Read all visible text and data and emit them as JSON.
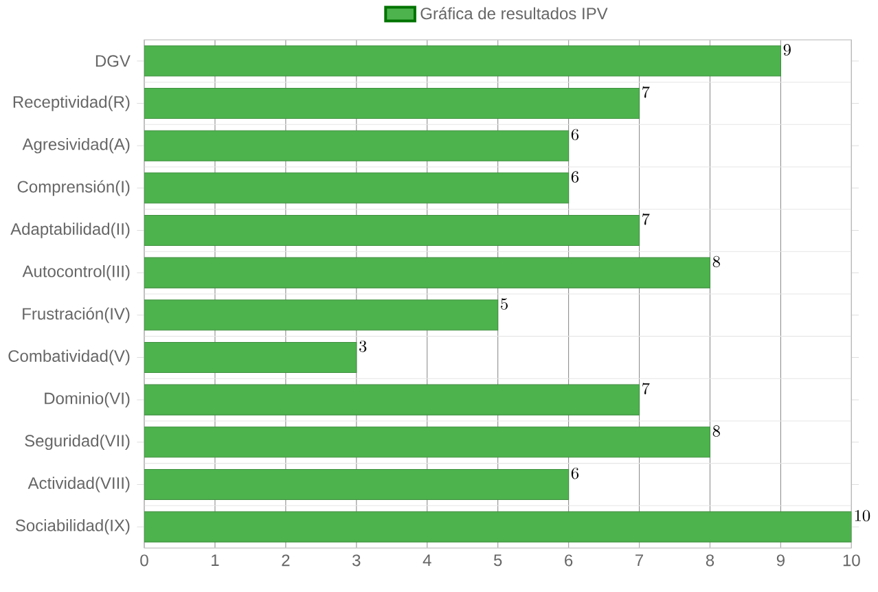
{
  "chart_data": {
    "type": "bar",
    "orientation": "horizontal",
    "categories": [
      "DGV",
      "Receptividad(R)",
      "Agresividad(A)",
      "Comprensión(I)",
      "Adaptabilidad(II)",
      "Autocontrol(III)",
      "Frustración(IV)",
      "Combatividad(V)",
      "Dominio(VI)",
      "Seguridad(VII)",
      "Actividad(VIII)",
      "Sociabilidad(IX)"
    ],
    "series": [
      {
        "name": "Gráfica de resultados IPV",
        "color": "#4db34d",
        "values": [
          9,
          7,
          6,
          6,
          7,
          8,
          5,
          3,
          7,
          8,
          6,
          10
        ]
      }
    ],
    "xlim": [
      0,
      10
    ],
    "xticks": [
      0,
      1,
      2,
      3,
      4,
      5,
      6,
      7,
      8,
      9,
      10
    ],
    "grid": true,
    "legend": "top",
    "data_labels": true
  }
}
